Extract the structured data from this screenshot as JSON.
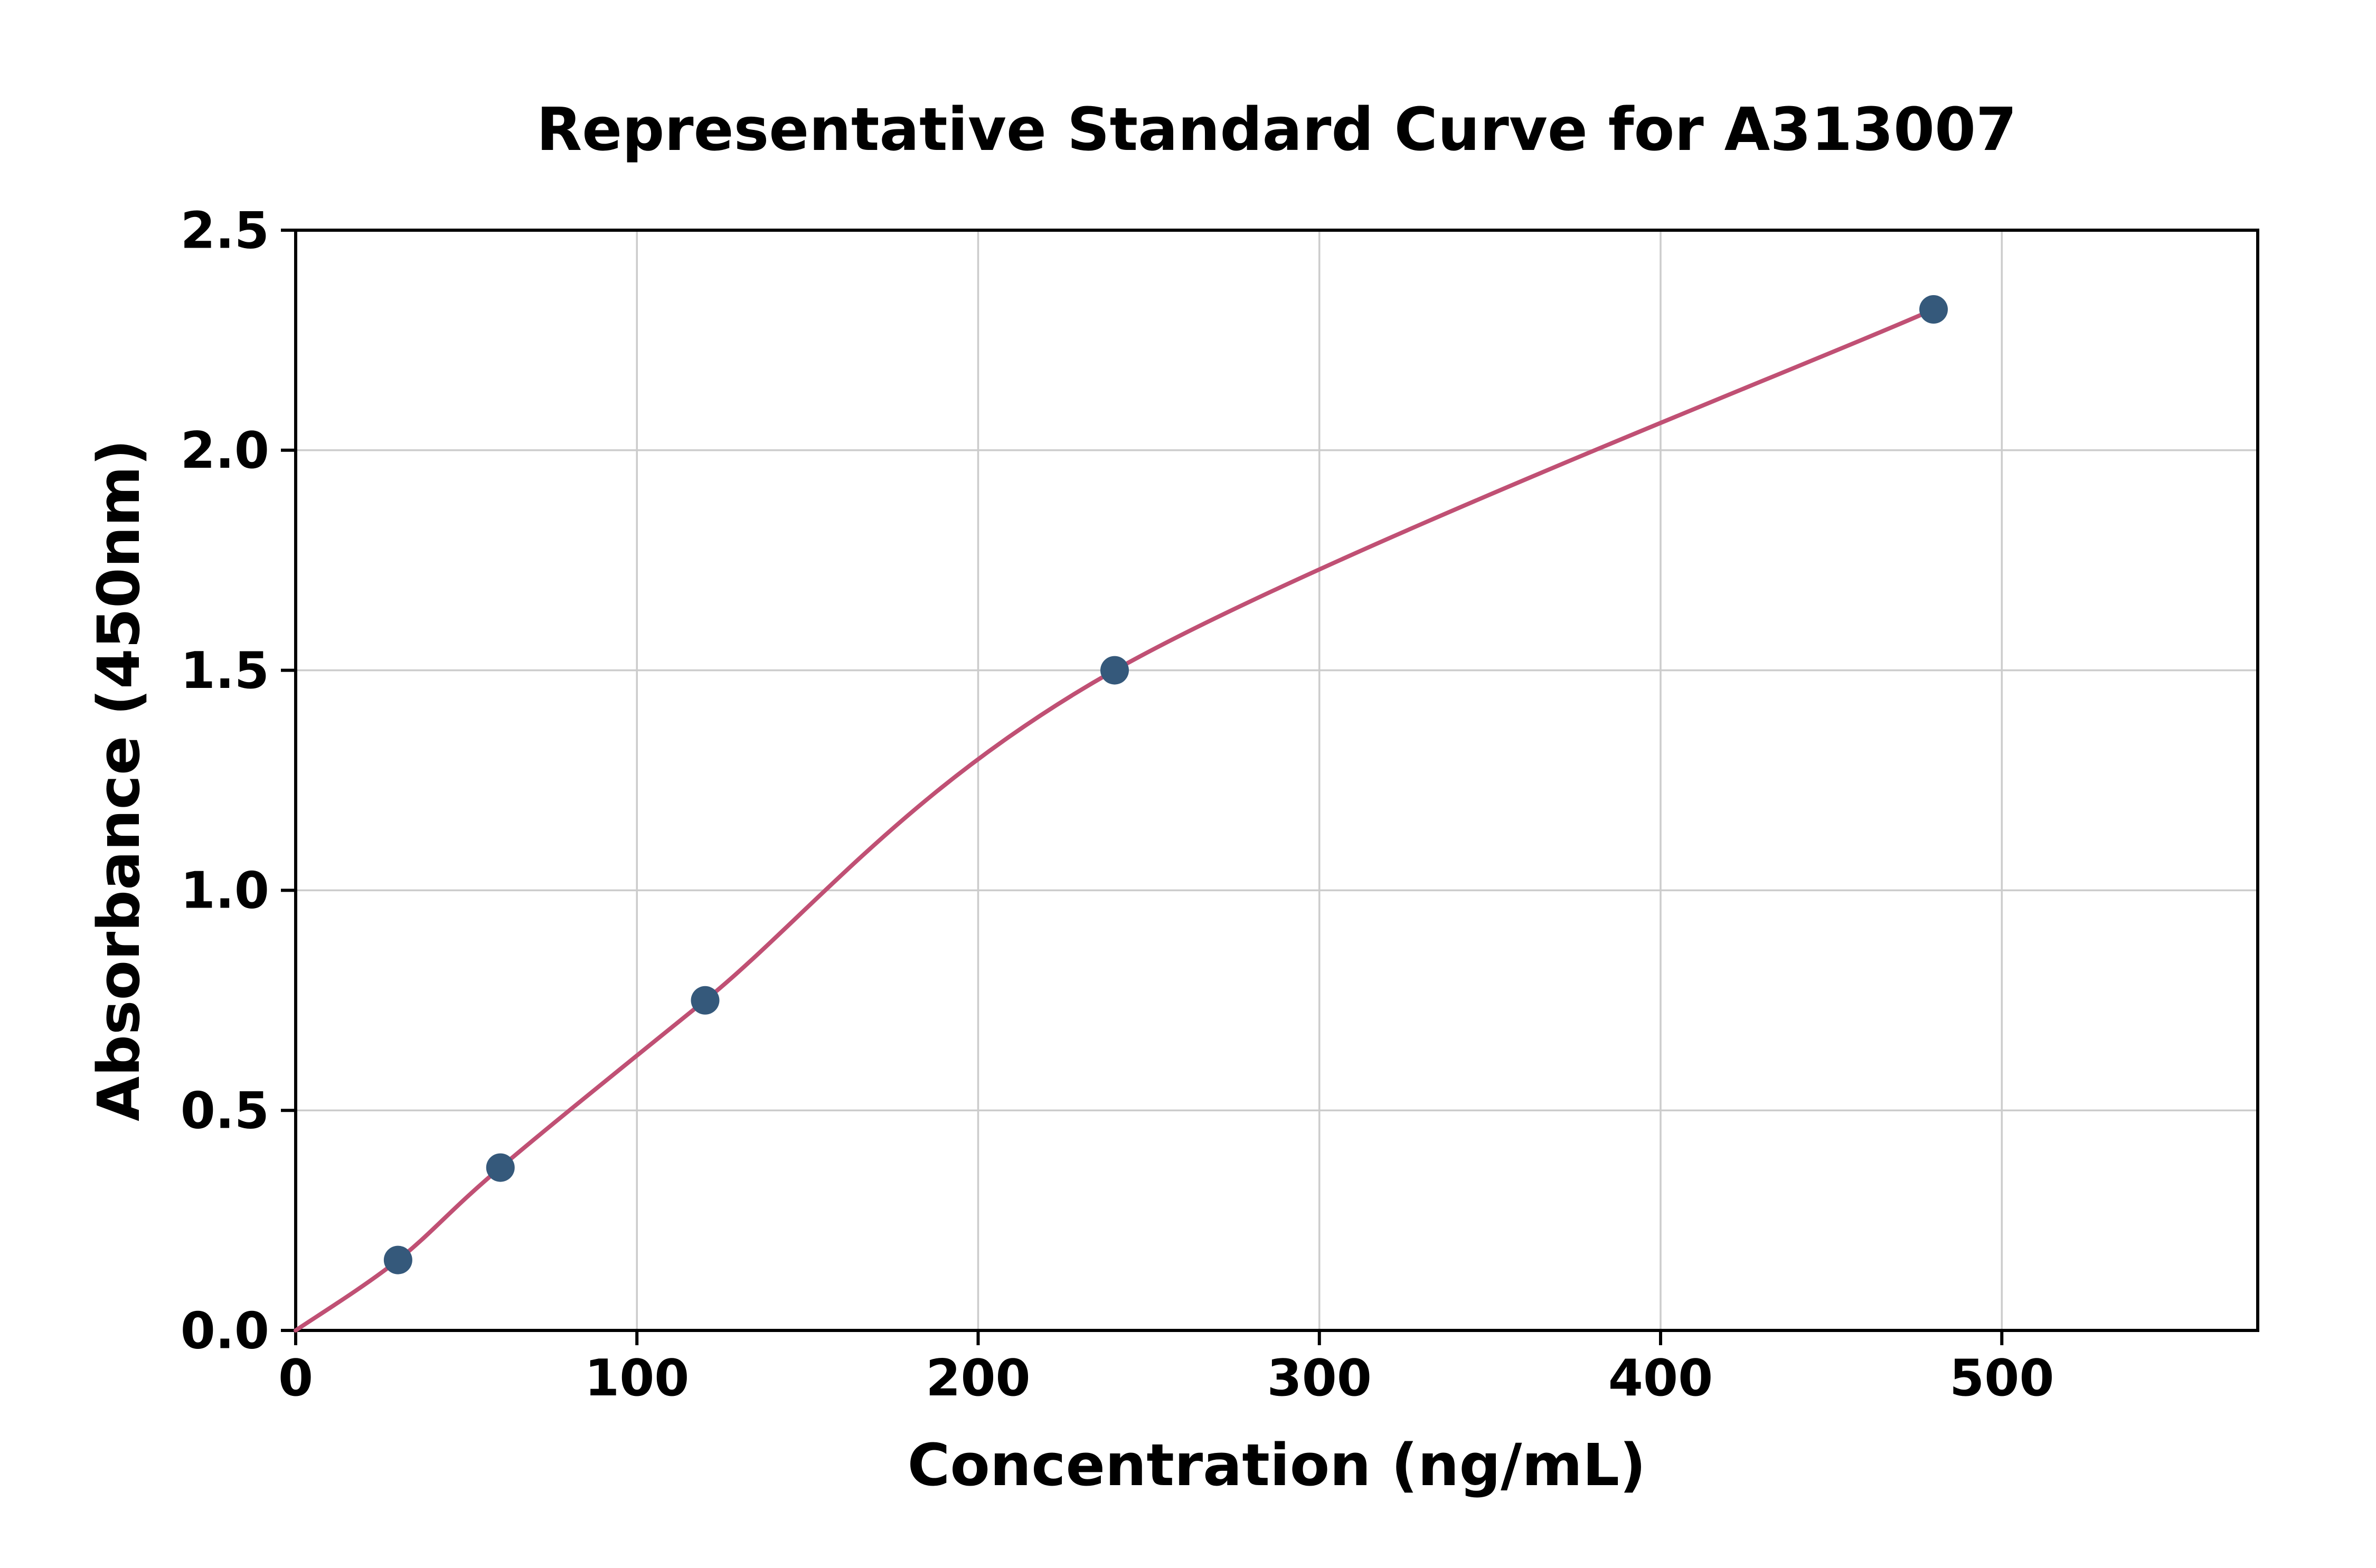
{
  "chart_data": {
    "type": "scatter",
    "title": "Representative Standard Curve for A313007",
    "xlabel": "Concentration (ng/mL)",
    "ylabel": "Absorbance (450nm)",
    "x": [
      30,
      60,
      120,
      240,
      480
    ],
    "y": [
      0.16,
      0.37,
      0.75,
      1.5,
      2.32
    ],
    "curve_points": [
      [
        0,
        0.0
      ],
      [
        30,
        0.16
      ],
      [
        60,
        0.37
      ],
      [
        120,
        0.75
      ],
      [
        240,
        1.5
      ],
      [
        480,
        2.32
      ]
    ],
    "xlim": [
      0,
      575
    ],
    "ylim": [
      0,
      2.5
    ],
    "xticks": [
      0,
      100,
      200,
      300,
      400,
      500
    ],
    "yticks": [
      0.0,
      0.5,
      1.0,
      1.5,
      2.0,
      2.5
    ],
    "ytick_decimals": 1,
    "grid": true,
    "legend": "none",
    "line_color": "#c05074",
    "marker_color": "#35597b",
    "grid_color": "#cccccc",
    "spine_color": "#000000",
    "tick_label_color": "#000000"
  }
}
